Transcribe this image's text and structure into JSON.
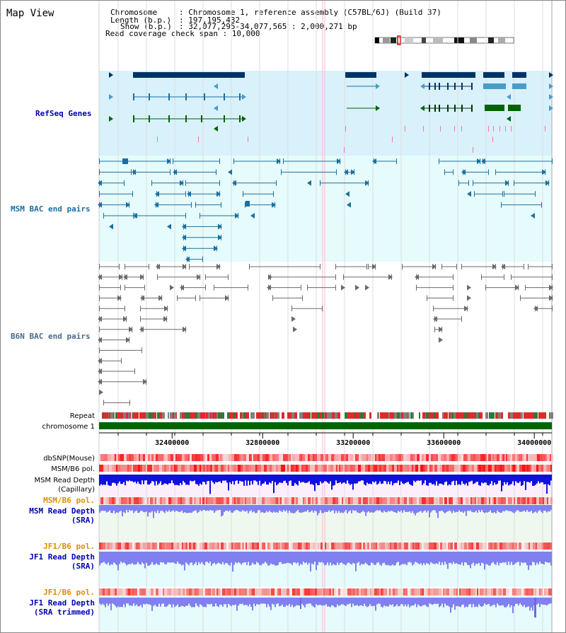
{
  "page_title": "Map View",
  "info": {
    "chromosome_key": "Chromosome",
    "chromosome_val": ": Chromosome 1, reference assembly (C57BL/6J) (Build 37)",
    "length_key": "Length (b.p.)",
    "length_val": ": 197,195,432",
    "show_key": "Show (b.p.)",
    "show_val": ": 32,077,295-34,077,565 : 2,000,271 bp",
    "coverage_label": "Read coverage check span : 10,000"
  },
  "tracks": {
    "refseq": {
      "label": "RefSeq Genes",
      "color": "#0000b4"
    },
    "msm_bac": {
      "label": "MSM BAC end pairs",
      "color": "#1a6fa0"
    },
    "b6n_bac": {
      "label": "B6N BAC end pairs",
      "color": "#4a6a8a"
    },
    "repeat": {
      "label": "Repeat"
    },
    "chromosome": {
      "label": "chromosome 1"
    },
    "dbsnp": {
      "label": "dbSNP(Mouse)"
    },
    "msm_b6_pol_1": {
      "label": "MSM/B6 pol."
    },
    "msm_depth_cap": {
      "label1": "MSM Read Depth",
      "label2": "(Capillary)"
    },
    "msm_b6_pol_2": {
      "label": "MSM/B6 pol.",
      "color": "#e08a00"
    },
    "msm_depth_sra": {
      "label1": "MSM Read Depth",
      "label2": "(SRA)",
      "color": "#0000b4"
    },
    "jf1_b6_pol_1": {
      "label": "JF1/B6 pol.",
      "color": "#e08a00"
    },
    "jf1_depth_sra": {
      "label1": "JF1 Read Depth",
      "label2": "(SRA)",
      "color": "#0000b4"
    },
    "jf1_b6_pol_2": {
      "label": "JF1/B6 pol.",
      "color": "#e08a00"
    },
    "jf1_depth_trim": {
      "label1": "JF1 Read Depth",
      "label2": "(SRA trimmed)",
      "color": "#0000b4"
    }
  },
  "axis": {
    "ticks": [
      32400000,
      32800000,
      33200000,
      33600000,
      34000000
    ],
    "tick_labels": [
      "32400000",
      "32800000",
      "33200000",
      "33600000",
      "34000000"
    ],
    "start": 32077295,
    "end": 34077565
  },
  "colors": {
    "refseq_bg": "#d9f1fb",
    "bac_bg": "#e6fbfb",
    "b6n_bg": "#ffffff",
    "gene_dark": "#003366",
    "gene_mid": "#4a9cc8",
    "gene_green": "#006400",
    "chrom_green": "#006400",
    "repeat_red": "#dd2a2a",
    "depth_blue": "#1010e0",
    "depth_light": "#8080f0",
    "sra_bg": "#eef8ee",
    "pink_line": "#f2a6bd"
  }
}
